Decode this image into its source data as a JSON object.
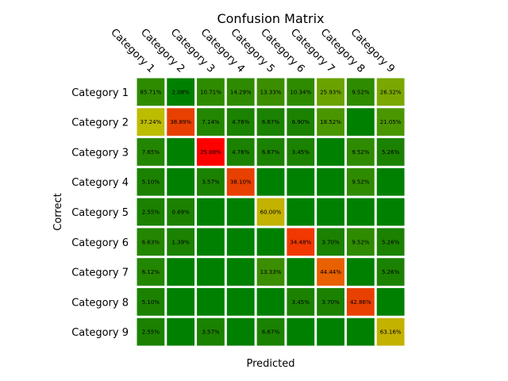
{
  "chart_data": {
    "type": "heatmap",
    "title": "Confusion Matrix",
    "xlabel": "Predicted",
    "ylabel": "Correct",
    "x_categories": [
      "Category 1",
      "Category 2",
      "Category 3",
      "Category 4",
      "Category 5",
      "Category 6",
      "Category 7",
      "Category 8",
      "Category 9"
    ],
    "y_categories": [
      "Category 1",
      "Category 2",
      "Category 3",
      "Category 4",
      "Category 5",
      "Category 6",
      "Category 7",
      "Category 8",
      "Category 9"
    ],
    "x_tick_position": "top",
    "grid": false,
    "values": [
      [
        85.71,
        2.08,
        10.71,
        14.29,
        13.33,
        10.34,
        25.93,
        9.52,
        26.32
      ],
      [
        37.24,
        38.89,
        7.14,
        4.76,
        6.67,
        6.9,
        18.52,
        0,
        21.05
      ],
      [
        7.65,
        0,
        25.0,
        4.76,
        6.67,
        3.45,
        0,
        9.52,
        5.26
      ],
      [
        5.1,
        0,
        3.57,
        38.1,
        0,
        0,
        0,
        9.52,
        0
      ],
      [
        2.55,
        0.69,
        0,
        0,
        60.0,
        0,
        0,
        0,
        0
      ],
      [
        6.63,
        1.39,
        0,
        0,
        0,
        34.48,
        3.7,
        9.52,
        5.26
      ],
      [
        6.12,
        0,
        0,
        0,
        13.33,
        0,
        44.44,
        0,
        5.26
      ],
      [
        5.1,
        0,
        0,
        0,
        0,
        3.45,
        3.7,
        42.86,
        0
      ],
      [
        2.55,
        0,
        3.57,
        0,
        6.67,
        0,
        0,
        0,
        63.16
      ]
    ],
    "cell_labels": [
      [
        "85.71%",
        "2.08%",
        "10.71%",
        "14.29%",
        "13.33%",
        "10.34%",
        "25.93%",
        "9.52%",
        "26.32%"
      ],
      [
        "37.24%",
        "38.89%",
        "7.14%",
        "4.76%",
        "6.67%",
        "6.90%",
        "18.52%",
        "",
        "21.05%"
      ],
      [
        "7.65%",
        "",
        "25.00%",
        "4.76%",
        "6.67%",
        "3.45%",
        "",
        "9.52%",
        "5.26%"
      ],
      [
        "5.10%",
        "",
        "3.57%",
        "38.10%",
        "",
        "",
        "",
        "9.52%",
        ""
      ],
      [
        "2.55%",
        "0.69%",
        "",
        "",
        "60.00%",
        "",
        "",
        "",
        ""
      ],
      [
        "6.63%",
        "1.39%",
        "",
        "",
        "",
        "34.48%",
        "3.70%",
        "9.52%",
        "5.26%"
      ],
      [
        "6.12%",
        "",
        "",
        "",
        "13.33%",
        "",
        "44.44%",
        "",
        "5.26%"
      ],
      [
        "5.10%",
        "",
        "",
        "",
        "",
        "3.45%",
        "3.70%",
        "42.86%",
        ""
      ],
      [
        "2.55%",
        "",
        "3.57%",
        "",
        "6.67%",
        "",
        "",
        "",
        "63.16%"
      ]
    ],
    "cell_colors": [
      [
        "#2e8b00",
        "#008000",
        "#2e8b00",
        "#2e8b00",
        "#3a8e00",
        "#2e8b00",
        "#6aa300",
        "#2e8b00",
        "#7aa800"
      ],
      [
        "#bcbc00",
        "#e84000",
        "#238600",
        "#1a8200",
        "#1a8200",
        "#1a8200",
        "#4a9600",
        "#008000",
        "#4a9600"
      ],
      [
        "#238600",
        "#008000",
        "#ff0000",
        "#1a8200",
        "#1a8200",
        "#1a8200",
        "#008000",
        "#2e8b00",
        "#1a8200"
      ],
      [
        "#1a8200",
        "#008000",
        "#1a8200",
        "#e84000",
        "#008000",
        "#008000",
        "#008000",
        "#2e8b00",
        "#008000"
      ],
      [
        "#1a8200",
        "#1a8200",
        "#008000",
        "#008000",
        "#c3b200",
        "#008000",
        "#008000",
        "#008000",
        "#008000"
      ],
      [
        "#238600",
        "#1a8200",
        "#008000",
        "#008000",
        "#008000",
        "#f03800",
        "#1a8200",
        "#2e8b00",
        "#1a8200"
      ],
      [
        "#238600",
        "#008000",
        "#008000",
        "#008000",
        "#3a8e00",
        "#008000",
        "#e86000",
        "#008000",
        "#1a8200"
      ],
      [
        "#1a8200",
        "#008000",
        "#008000",
        "#008000",
        "#008000",
        "#1a8200",
        "#1a8200",
        "#e84000",
        "#008000"
      ],
      [
        "#1a8200",
        "#008000",
        "#1a8200",
        "#008000",
        "#1a8200",
        "#008000",
        "#008000",
        "#008000",
        "#c3b200"
      ]
    ]
  }
}
